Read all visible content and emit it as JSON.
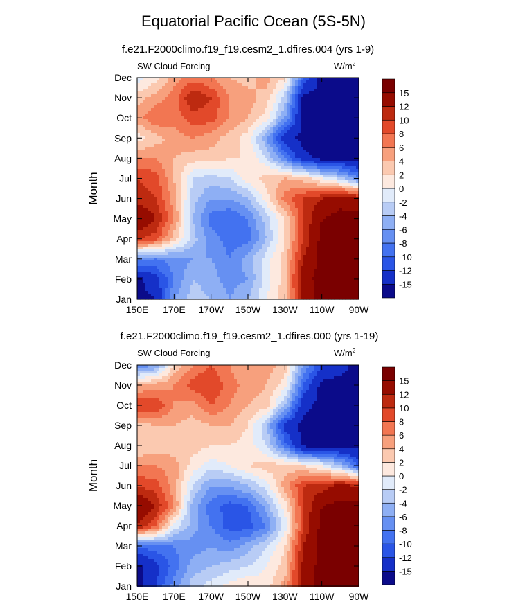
{
  "title": "Equatorial Pacific Ocean (5S-5N)",
  "panels": [
    {
      "subtitle": "f.e21.F2000climo.f19_f19.cesm2_1.dfires.004 (yrs 1-9)",
      "left_label": "SW Cloud Forcing",
      "units": "W/m",
      "units_sup": "2"
    },
    {
      "subtitle": "f.e21.F2000climo.f19_f19.cesm2_1.dfires.000 (yrs 1-19)",
      "left_label": "SW Cloud Forcing",
      "units": "W/m",
      "units_sup": "2"
    }
  ],
  "chart_data": [
    {
      "type": "heatmap",
      "title": "Equatorial Pacific Ocean (5S-5N)",
      "subtitle": "f.e21.F2000climo.f19_f19.cesm2_1.dfires.004 (yrs 1-9)",
      "variable": "SW Cloud Forcing",
      "units": "W/m2",
      "ylabel": "Month",
      "xlabel": "",
      "x_ticks": [
        "150E",
        "170E",
        "170W",
        "150W",
        "130W",
        "110W",
        "90W"
      ],
      "y_ticks": [
        "Jan",
        "Feb",
        "Mar",
        "Apr",
        "May",
        "Jun",
        "Jul",
        "Aug",
        "Sep",
        "Oct",
        "Nov",
        "Dec"
      ],
      "x_lon": [
        150,
        160,
        170,
        180,
        190,
        200,
        210,
        220,
        230,
        240,
        250,
        260,
        270
      ],
      "colorbar_levels": [
        "-15",
        "-12",
        "-10",
        "-8",
        "-6",
        "-4",
        "-2",
        "0",
        "2",
        "4",
        "6",
        "8",
        "10",
        "12",
        "15"
      ],
      "values": [
        [
          -16,
          -15,
          -6,
          -3,
          -4,
          -6,
          -4,
          0,
          3,
          13,
          16,
          16,
          16
        ],
        [
          -16,
          -13,
          -8,
          -4,
          -5,
          -7,
          -6,
          -1,
          3,
          14,
          16,
          16,
          16
        ],
        [
          -7,
          -8,
          -7,
          -6,
          -6,
          -8,
          -5,
          -1,
          3,
          12,
          16,
          16,
          16
        ],
        [
          10,
          9,
          3,
          -3,
          -7,
          -9,
          -9,
          -4,
          2,
          10,
          16,
          16,
          16
        ],
        [
          15,
          12,
          6,
          -4,
          -9,
          -10,
          -8,
          -3,
          2,
          10,
          15,
          16,
          16
        ],
        [
          11,
          10,
          5,
          -3,
          -6,
          -6,
          -4,
          1,
          7,
          10,
          12,
          14,
          13
        ],
        [
          10,
          9,
          4,
          -2,
          -3,
          -2,
          1,
          3,
          4,
          3,
          0,
          -3,
          -8
        ],
        [
          6,
          6,
          4,
          3,
          3,
          2,
          2,
          -2,
          -8,
          -14,
          -16,
          -16,
          -16
        ],
        [
          1,
          3,
          5,
          6,
          5,
          3,
          1,
          -6,
          -14,
          -16,
          -16,
          -16,
          -16
        ],
        [
          5,
          8,
          7,
          9,
          9,
          6,
          4,
          1,
          -6,
          -16,
          -16,
          -16,
          -16
        ],
        [
          3,
          5,
          7,
          12,
          10,
          6,
          5,
          3,
          -3,
          -16,
          -16,
          -16,
          -16
        ],
        [
          -1,
          1,
          5,
          7,
          6,
          4,
          3,
          5,
          2,
          -10,
          -16,
          -16,
          -16
        ]
      ]
    },
    {
      "type": "heatmap",
      "subtitle": "f.e21.F2000climo.f19_f19.cesm2_1.dfires.000 (yrs 1-19)",
      "variable": "SW Cloud Forcing",
      "units": "W/m2",
      "ylabel": "Month",
      "xlabel": "",
      "x_ticks": [
        "150E",
        "170E",
        "170W",
        "150W",
        "130W",
        "110W",
        "90W"
      ],
      "y_ticks": [
        "Jan",
        "Feb",
        "Mar",
        "Apr",
        "May",
        "Jun",
        "Jul",
        "Aug",
        "Sep",
        "Oct",
        "Nov",
        "Dec"
      ],
      "x_lon": [
        150,
        160,
        170,
        180,
        190,
        200,
        210,
        220,
        230,
        240,
        250,
        260,
        270
      ],
      "colorbar_levels": [
        "-15",
        "-12",
        "-10",
        "-8",
        "-6",
        "-4",
        "-2",
        "0",
        "2",
        "4",
        "6",
        "8",
        "10",
        "12",
        "15"
      ],
      "values": [
        [
          -16,
          -12,
          -7,
          -3,
          -1,
          1,
          2,
          1,
          5,
          13,
          16,
          16,
          16
        ],
        [
          -16,
          -13,
          -9,
          -5,
          -4,
          -3,
          -2,
          0,
          3,
          13,
          16,
          16,
          16
        ],
        [
          -10,
          -9,
          -8,
          -7,
          -6,
          -7,
          -5,
          -2,
          2,
          12,
          16,
          16,
          16
        ],
        [
          12,
          8,
          -1,
          -5,
          -8,
          -11,
          -11,
          -8,
          -1,
          10,
          16,
          16,
          16
        ],
        [
          15,
          12,
          6,
          -5,
          -9,
          -11,
          -10,
          -5,
          1,
          10,
          15,
          16,
          16
        ],
        [
          10,
          9,
          5,
          -2,
          -6,
          -6,
          -4,
          -1,
          5,
          10,
          11,
          13,
          12
        ],
        [
          6,
          6,
          5,
          1,
          -1,
          0,
          2,
          3,
          3,
          2,
          0,
          -4,
          -10
        ],
        [
          2,
          3,
          3,
          3,
          2,
          2,
          1,
          -2,
          -9,
          -16,
          -16,
          -16,
          -16
        ],
        [
          3,
          4,
          4,
          3,
          4,
          4,
          2,
          -4,
          -13,
          -16,
          -16,
          -16,
          -16
        ],
        [
          10,
          10,
          6,
          5,
          8,
          6,
          4,
          3,
          -4,
          -14,
          -16,
          -16,
          -16
        ],
        [
          4,
          5,
          6,
          9,
          10,
          7,
          5,
          4,
          1,
          -10,
          -16,
          -16,
          -16
        ],
        [
          -8,
          -6,
          2,
          6,
          8,
          6,
          4,
          5,
          3,
          -6,
          -12,
          -14,
          -16
        ]
      ]
    }
  ],
  "colors": {
    "scale": [
      "#0b0b8a",
      "#1530c8",
      "#2a55e6",
      "#4372f0",
      "#6690f2",
      "#8eaff4",
      "#b8ccf5",
      "#e1ebfa",
      "#fde9df",
      "#fbc9b0",
      "#f7a07d",
      "#f27652",
      "#e2492a",
      "#bd2a10",
      "#960c00",
      "#7a0000"
    ],
    "bounds": [
      -15,
      -12,
      -10,
      -8,
      -6,
      -4,
      -2,
      0,
      2,
      4,
      6,
      8,
      10,
      12,
      15
    ]
  }
}
